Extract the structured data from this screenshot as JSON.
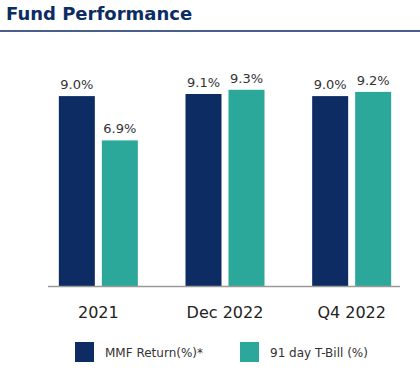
{
  "chart_data": {
    "type": "bar",
    "title": "Fund Performance",
    "categories": [
      "2021",
      "Dec 2022",
      "Q4 2022"
    ],
    "series": [
      {
        "name": "MMF Return(%)*",
        "color": "#0c2c63",
        "values": [
          9.0,
          9.1,
          9.0
        ],
        "value_labels": [
          "9.0%",
          "9.1%",
          "9.0%"
        ]
      },
      {
        "name": "91 day T-Bill (%)",
        "color": "#2ba89a",
        "values": [
          6.9,
          9.3,
          9.2
        ],
        "value_labels": [
          "6.9%",
          "9.3%",
          "9.2%"
        ]
      }
    ],
    "ylim": [
      0,
      10
    ],
    "grid": false,
    "data_labels": true,
    "tick_labels": "x",
    "legend": "bottom"
  }
}
